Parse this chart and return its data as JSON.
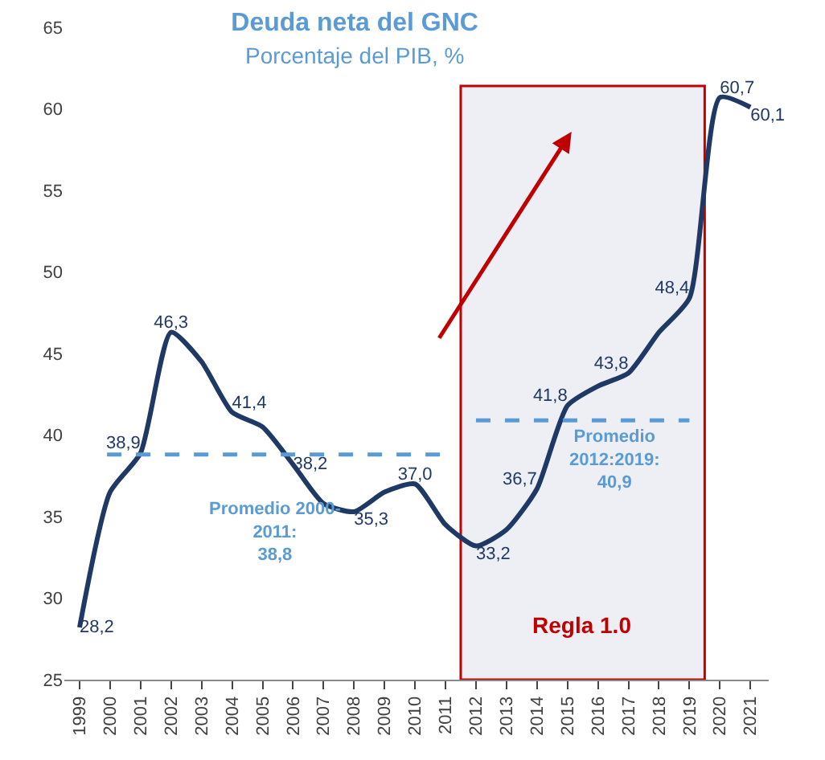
{
  "chart_data": {
    "type": "line",
    "title": "Deuda neta del GNC",
    "subtitle": "Porcentaje del PIB, %",
    "x": [
      1999,
      2000,
      2001,
      2002,
      2003,
      2004,
      2005,
      2006,
      2007,
      2008,
      2009,
      2010,
      2011,
      2012,
      2013,
      2014,
      2015,
      2016,
      2017,
      2018,
      2019,
      2020,
      2021
    ],
    "series": [
      {
        "color": "#1f3864",
        "values": [
          28.2,
          36.5,
          38.9,
          46.3,
          44.5,
          41.4,
          40.5,
          38.2,
          35.8,
          35.3,
          36.5,
          37.0,
          34.5,
          33.2,
          34.2,
          36.7,
          41.8,
          43.0,
          43.8,
          46.3,
          48.4,
          60.7,
          60.1
        ],
        "value_labels": [
          "28,2",
          null,
          "38,9",
          "46,3",
          null,
          "41,4",
          null,
          "38,2",
          null,
          "35,3",
          null,
          "37,0",
          null,
          "33,2",
          null,
          "36,7",
          "41,8",
          null,
          "43,8",
          null,
          "48,4",
          "60,7",
          "60,1"
        ]
      },
      {
        "type": "line",
        "color": "#5b9bd5",
        "line_style": "dashed",
        "x": [
          1999.9,
          2011
        ],
        "values": [
          38.8,
          38.8
        ]
      },
      {
        "type": "line",
        "color": "#5b9bd5",
        "line_style": "dashed",
        "x": [
          2012,
          2019
        ],
        "values": [
          40.9,
          40.9
        ]
      }
    ],
    "bands": [
      {
        "axis": "x",
        "from": 2011.5,
        "to": 2019.5,
        "label": "Regla 1.0",
        "color": "#c00000"
      }
    ],
    "annotations": [
      "Promedio 2000-\n2011:\n38,8",
      "Promedio\n2012:2019:\n40,9"
    ],
    "xlim": [
      1998.5,
      2021.6
    ],
    "xticks": [
      1999,
      2000,
      2001,
      2002,
      2003,
      2004,
      2005,
      2006,
      2007,
      2008,
      2009,
      2010,
      2011,
      2012,
      2013,
      2014,
      2015,
      2016,
      2017,
      2018,
      2019,
      2020,
      2021
    ],
    "ylim": [
      25,
      65
    ],
    "yticks": [
      25,
      30,
      35,
      40,
      45,
      50,
      55,
      60,
      65
    ],
    "grid": false
  }
}
